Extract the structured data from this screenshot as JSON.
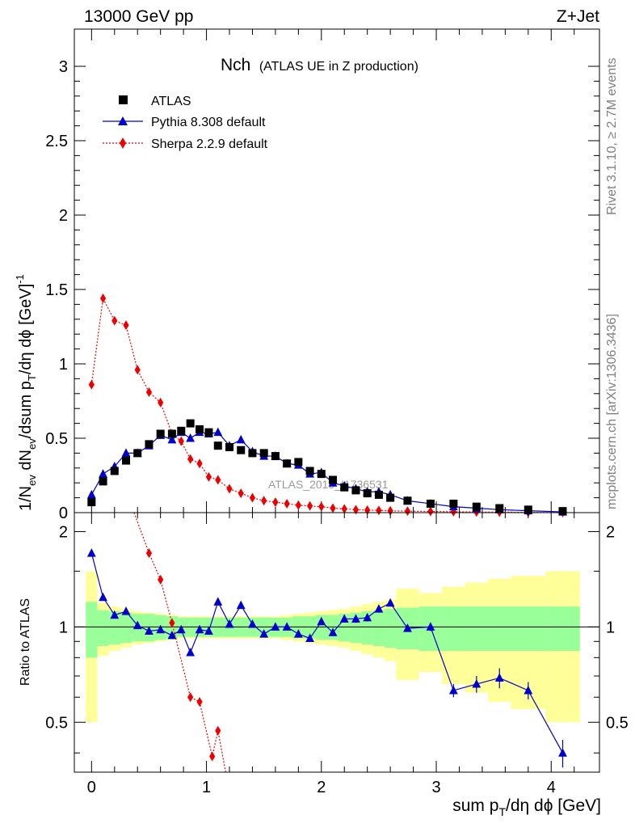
{
  "header": {
    "left": "13000 GeV pp",
    "right": "Z+Jet"
  },
  "side_labels": {
    "top": "Rivet 3.1.10, ≥ 2.7M events",
    "bottom": "mcplots.cern.ch [arXiv:1306.3436]"
  },
  "watermark": "ATLAS_2019_I1736531",
  "colors": {
    "atlas": "#000000",
    "pythia": "#0000cc",
    "sherpa": "#ee0000",
    "band_inner": "#99ff99",
    "band_outer": "#ffff99"
  },
  "chart_data": [
    {
      "type": "scatter",
      "title_main": "Nch",
      "title_sub": "(ATLAS UE in Z production)",
      "ylabel": {
        "base": "1/N",
        "sub1": "ev",
        "mid1": " dN",
        "sub2": "ev",
        "mid2": "/dsum p",
        "sub3": "T",
        "mid3": "/dη dϕ  [GeV]",
        "sup": "-1"
      },
      "xlim": [
        -0.15,
        4.42
      ],
      "ylim": [
        0,
        3.25
      ],
      "yticks": [
        0,
        0.5,
        1,
        1.5,
        2,
        2.5,
        3
      ],
      "ytick_labels": [
        "0",
        "0.5",
        "1",
        "1.5",
        "2",
        "2.5",
        "3"
      ],
      "legend": [
        {
          "key": "atlas",
          "label": "ATLAS"
        },
        {
          "key": "pythia",
          "label": "Pythia 8.308 default"
        },
        {
          "key": "sherpa",
          "label": "Sherpa 2.2.9 default"
        }
      ],
      "series": [
        {
          "key": "atlas",
          "name": "ATLAS",
          "x": [
            0.0,
            0.1,
            0.2,
            0.3,
            0.4,
            0.5,
            0.6,
            0.7,
            0.78,
            0.86,
            0.94,
            1.02,
            1.1,
            1.2,
            1.3,
            1.4,
            1.5,
            1.6,
            1.7,
            1.8,
            1.9,
            2.0,
            2.1,
            2.2,
            2.3,
            2.4,
            2.5,
            2.6,
            2.75,
            2.95,
            3.15,
            3.35,
            3.55,
            3.8,
            4.1
          ],
          "y": [
            0.07,
            0.21,
            0.28,
            0.35,
            0.4,
            0.46,
            0.53,
            0.53,
            0.55,
            0.6,
            0.56,
            0.54,
            0.45,
            0.44,
            0.42,
            0.4,
            0.4,
            0.38,
            0.33,
            0.34,
            0.28,
            0.26,
            0.22,
            0.17,
            0.15,
            0.13,
            0.12,
            0.1,
            0.08,
            0.06,
            0.06,
            0.04,
            0.03,
            0.02,
            0.01
          ]
        },
        {
          "key": "pythia",
          "name": "Pythia 8.308 default",
          "x": [
            0.0,
            0.1,
            0.2,
            0.3,
            0.4,
            0.5,
            0.6,
            0.7,
            0.78,
            0.86,
            0.94,
            1.02,
            1.1,
            1.2,
            1.3,
            1.4,
            1.5,
            1.6,
            1.7,
            1.8,
            1.9,
            2.0,
            2.1,
            2.2,
            2.3,
            2.4,
            2.5,
            2.6,
            2.75,
            2.95,
            3.15,
            3.35,
            3.55,
            3.8,
            4.1
          ],
          "y": [
            0.12,
            0.26,
            0.31,
            0.4,
            0.4,
            0.45,
            0.52,
            0.49,
            0.54,
            0.5,
            0.54,
            0.53,
            0.54,
            0.45,
            0.49,
            0.41,
            0.38,
            0.38,
            0.33,
            0.32,
            0.26,
            0.27,
            0.2,
            0.18,
            0.16,
            0.14,
            0.14,
            0.12,
            0.08,
            0.06,
            0.04,
            0.03,
            0.02,
            0.013,
            0.005
          ]
        },
        {
          "key": "sherpa",
          "name": "Sherpa 2.2.9 default",
          "x": [
            0.0,
            0.1,
            0.2,
            0.3,
            0.4,
            0.5,
            0.6,
            0.7,
            0.78,
            0.86,
            0.94,
            1.02,
            1.1,
            1.2,
            1.3,
            1.4,
            1.5,
            1.6,
            1.7,
            1.8,
            1.9,
            2.0,
            2.1,
            2.2,
            2.3,
            2.4,
            2.5,
            2.6,
            2.75,
            2.95,
            3.15,
            3.35,
            3.55,
            3.8,
            4.1
          ],
          "y": [
            0.86,
            1.44,
            1.29,
            1.26,
            0.96,
            0.81,
            0.74,
            0.53,
            0.48,
            0.36,
            0.33,
            0.24,
            0.22,
            0.16,
            0.13,
            0.1,
            0.08,
            0.07,
            0.06,
            0.05,
            0.045,
            0.04,
            0.03,
            0.025,
            0.02,
            0.017,
            0.015,
            0.012,
            0.01,
            0.008,
            0.006,
            0.004,
            0.003,
            0.002,
            0.001
          ]
        }
      ]
    },
    {
      "type": "line",
      "ylabel": "Ratio to ATLAS",
      "xlabel": {
        "base": "sum p",
        "sub": "T",
        "rest": "/dη dϕ [GeV]"
      },
      "xlim": [
        -0.15,
        4.42
      ],
      "ylim": [
        0.3478,
        2.2958
      ],
      "xticks": [
        0,
        1,
        2,
        3,
        4
      ],
      "xtick_labels": [
        "0",
        "1",
        "2",
        "3",
        "4"
      ],
      "yticks": [
        0.5,
        1,
        2
      ],
      "ytick_labels": [
        "0.5",
        "1",
        "2"
      ],
      "bands": {
        "edges": [
          -0.05,
          0.05,
          0.15,
          0.25,
          0.35,
          0.45,
          0.55,
          0.65,
          0.75,
          0.85,
          0.95,
          1.05,
          1.15,
          1.25,
          1.35,
          1.45,
          1.55,
          1.65,
          1.75,
          1.85,
          1.95,
          2.05,
          2.15,
          2.25,
          2.35,
          2.45,
          2.55,
          2.65,
          2.85,
          3.05,
          3.25,
          3.45,
          3.65,
          3.95,
          4.25
        ],
        "inner_lo": [
          0.8,
          0.87,
          0.88,
          0.89,
          0.9,
          0.9,
          0.91,
          0.92,
          0.93,
          0.93,
          0.93,
          0.93,
          0.93,
          0.93,
          0.93,
          0.93,
          0.93,
          0.93,
          0.92,
          0.92,
          0.91,
          0.91,
          0.9,
          0.89,
          0.88,
          0.87,
          0.86,
          0.85,
          0.84,
          0.84,
          0.84,
          0.84,
          0.84,
          0.84
        ],
        "inner_hi": [
          1.2,
          1.13,
          1.12,
          1.11,
          1.1,
          1.1,
          1.09,
          1.08,
          1.07,
          1.07,
          1.07,
          1.07,
          1.07,
          1.07,
          1.07,
          1.07,
          1.07,
          1.07,
          1.08,
          1.08,
          1.09,
          1.09,
          1.1,
          1.11,
          1.12,
          1.13,
          1.14,
          1.15,
          1.16,
          1.16,
          1.16,
          1.16,
          1.16,
          1.16
        ],
        "outer_lo": [
          0.5,
          0.81,
          0.84,
          0.86,
          0.88,
          0.89,
          0.9,
          0.91,
          0.92,
          0.92,
          0.92,
          0.92,
          0.92,
          0.92,
          0.92,
          0.92,
          0.92,
          0.91,
          0.9,
          0.89,
          0.88,
          0.87,
          0.86,
          0.84,
          0.82,
          0.8,
          0.78,
          0.68,
          0.72,
          0.66,
          0.62,
          0.58,
          0.55,
          0.5
        ],
        "outer_hi": [
          1.5,
          1.19,
          1.16,
          1.14,
          1.12,
          1.11,
          1.1,
          1.09,
          1.08,
          1.08,
          1.08,
          1.08,
          1.08,
          1.08,
          1.08,
          1.08,
          1.08,
          1.09,
          1.1,
          1.11,
          1.12,
          1.13,
          1.14,
          1.16,
          1.18,
          1.2,
          1.22,
          1.32,
          1.28,
          1.34,
          1.38,
          1.42,
          1.45,
          1.5
        ]
      },
      "series": [
        {
          "key": "pythia",
          "name": "Pythia 8.308 default",
          "x": [
            0.0,
            0.1,
            0.2,
            0.3,
            0.4,
            0.5,
            0.6,
            0.7,
            0.78,
            0.86,
            0.94,
            1.02,
            1.1,
            1.2,
            1.3,
            1.4,
            1.5,
            1.6,
            1.7,
            1.8,
            1.9,
            2.0,
            2.1,
            2.2,
            2.3,
            2.4,
            2.5,
            2.6,
            2.75,
            2.95,
            3.15,
            3.35,
            3.55,
            3.8,
            4.1
          ],
          "y": [
            1.71,
            1.24,
            1.09,
            1.12,
            1.01,
            0.97,
            0.98,
            0.94,
            0.98,
            0.83,
            0.98,
            0.97,
            1.2,
            1.02,
            1.17,
            1.02,
            0.95,
            1.0,
            1.0,
            0.95,
            0.92,
            1.04,
            0.96,
            1.06,
            1.06,
            1.07,
            1.14,
            1.19,
            0.99,
            1.0,
            0.63,
            0.66,
            0.69,
            0.63,
            0.4
          ],
          "err": [
            0.03,
            0.02,
            0.02,
            0.02,
            0.02,
            0.02,
            0.02,
            0.02,
            0.02,
            0.02,
            0.02,
            0.02,
            0.02,
            0.02,
            0.02,
            0.02,
            0.02,
            0.02,
            0.02,
            0.02,
            0.02,
            0.02,
            0.02,
            0.02,
            0.03,
            0.03,
            0.03,
            0.03,
            0.02,
            0.03,
            0.03,
            0.04,
            0.05,
            0.04,
            0.04
          ]
        },
        {
          "key": "sherpa",
          "name": "Sherpa 2.2.9 default",
          "x": [
            0.35,
            0.5,
            0.6,
            0.7,
            0.86,
            0.94,
            1.05,
            1.1,
            1.2
          ],
          "y": [
            2.4,
            1.71,
            1.41,
            1.03,
            0.6,
            0.58,
            0.39,
            0.47,
            0.3
          ]
        }
      ]
    }
  ]
}
